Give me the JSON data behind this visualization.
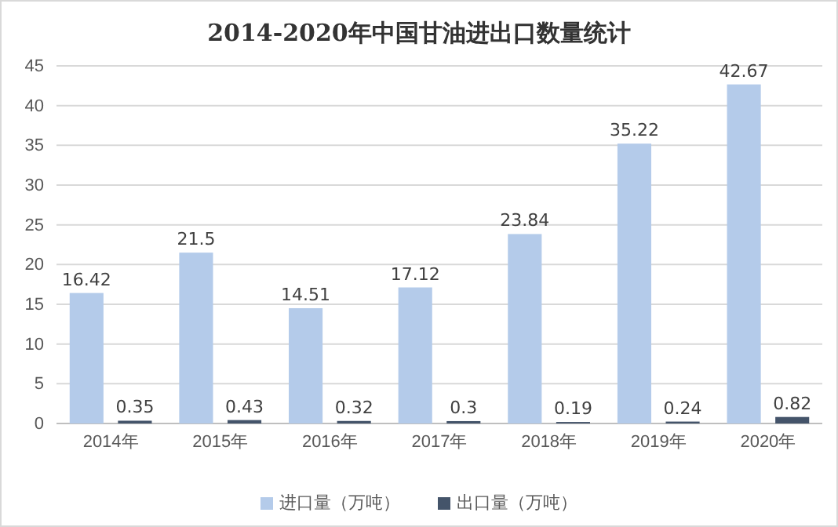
{
  "chart_data": {
    "type": "bar",
    "title": "2014-2020年中国甘油进出口数量统计",
    "categories": [
      "2014年",
      "2015年",
      "2016年",
      "2017年",
      "2018年",
      "2019年",
      "2020年"
    ],
    "series": [
      {
        "name": "进口量（万吨）",
        "color": "#b4cbea",
        "values": [
          16.42,
          21.5,
          14.51,
          17.12,
          23.84,
          35.22,
          42.67
        ]
      },
      {
        "name": "出口量（万吨）",
        "color": "#44546a",
        "values": [
          0.35,
          0.43,
          0.32,
          0.3,
          0.19,
          0.24,
          0.82
        ]
      }
    ],
    "ylim": [
      0,
      45
    ],
    "yticks": [
      0,
      5,
      10,
      15,
      20,
      25,
      30,
      35,
      40,
      45
    ],
    "grid": "y",
    "legend": "bottom",
    "data_labels": true
  }
}
